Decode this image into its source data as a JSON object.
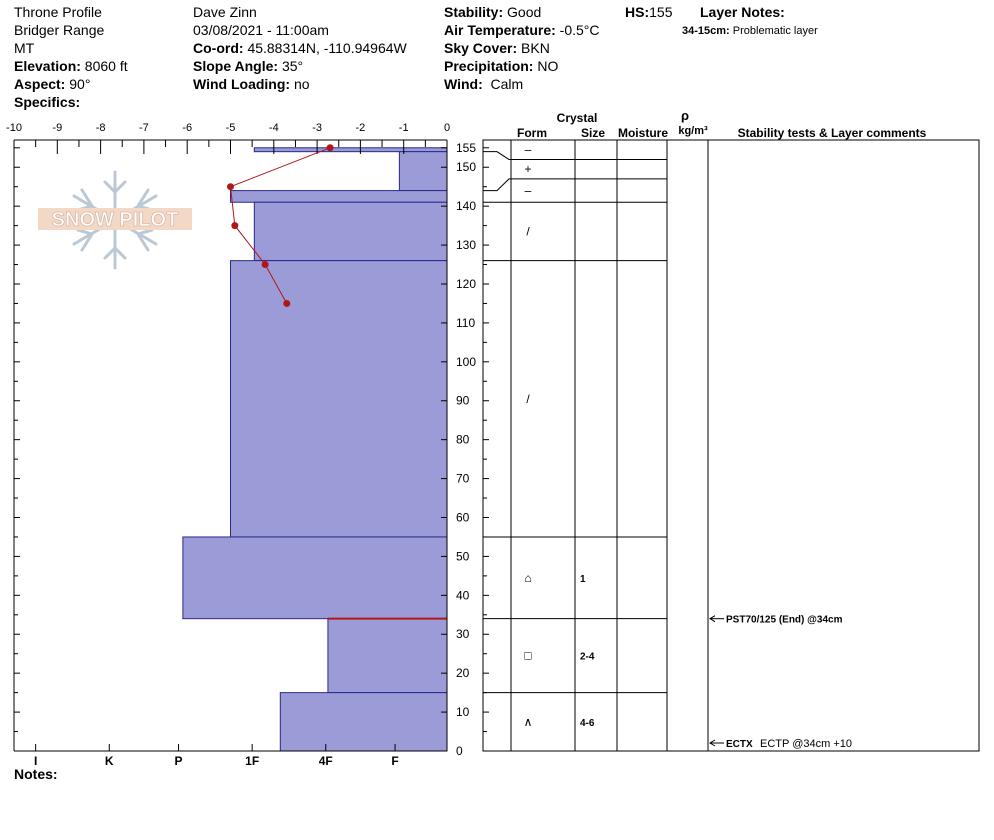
{
  "header": {
    "location": "Throne Profile",
    "range": "Bridger Range",
    "state": "MT",
    "elevation_label": "Elevation:",
    "elevation": "8060 ft",
    "aspect_label": "Aspect:",
    "aspect": "90°",
    "specifics_label": "Specifics:",
    "observer": "Dave Zinn",
    "datetime": "03/08/2021 - 11:00am",
    "coord_label": "Co-ord:",
    "coord": "45.88314N, -110.94964W",
    "slope_label": "Slope Angle:",
    "slope": "35°",
    "wind_loading_label": "Wind Loading:",
    "wind_loading": "no",
    "stability_label": "Stability:",
    "stability": "Good",
    "air_temp_label": "Air Temperature:",
    "air_temp": "-0.5°C",
    "sky_label": "Sky Cover:",
    "sky": "BKN",
    "precip_label": "Precipitation:",
    "precip": "NO",
    "wind_label": "Wind:",
    "wind": "Calm",
    "hs_label": "HS:",
    "hs": "155",
    "layer_notes_label": "Layer Notes:",
    "layer_note_range": "34-15cm:",
    "layer_note_text": "Problematic layer"
  },
  "notes_label": "Notes:",
  "watermark": "SNOW PILOT",
  "columns": {
    "crystal": "Crystal",
    "form": "Form",
    "size": "Size",
    "moisture": "Moisture",
    "rho": "ρ",
    "density_unit": "kg/m³",
    "stability": "Stability tests & Layer comments"
  },
  "colors": {
    "layer_fill": "#9b9bd7",
    "layer_stroke": "#2a2a8a",
    "temp_line": "#b01818",
    "weak_layer": "#b01818"
  },
  "chart_data": {
    "type": "snow-profile",
    "temp_axis": {
      "ticks": [
        "-10",
        "-9",
        "-8",
        "-7",
        "-6",
        "-5",
        "-4",
        "-3",
        "-2",
        "-1",
        "0"
      ],
      "range": [
        -10,
        0
      ]
    },
    "height_axis": {
      "range": [
        0,
        157
      ],
      "ticks": [
        "0",
        "10",
        "20",
        "30",
        "40",
        "50",
        "60",
        "70",
        "80",
        "90",
        "100",
        "110",
        "120",
        "130",
        "140",
        "150",
        "155"
      ],
      "tick_values": [
        0,
        10,
        20,
        30,
        40,
        50,
        60,
        70,
        80,
        90,
        100,
        110,
        120,
        130,
        140,
        150,
        155
      ]
    },
    "hardness_axis": {
      "labels": [
        "I",
        "K",
        "P",
        "1F",
        "4F",
        "F"
      ]
    },
    "hardness_label_positions": [
      -9.5,
      -7.8,
      -6.2,
      -4.5,
      -2.8,
      -1.2
    ],
    "layers": [
      {
        "top": 155,
        "bottom": 154,
        "hardness_temp": -4.45,
        "form": "–",
        "size": ""
      },
      {
        "top": 154,
        "bottom": 144,
        "hardness_temp": -1.1,
        "form": "+",
        "size": ""
      },
      {
        "top": 144,
        "bottom": 141,
        "hardness_temp": -5.0,
        "form": "–",
        "size": ""
      },
      {
        "top": 141,
        "bottom": 126,
        "hardness_temp": -4.45,
        "form": "/",
        "size": ""
      },
      {
        "top": 126,
        "bottom": 55,
        "hardness_temp": -5.0,
        "form": "/",
        "size": ""
      },
      {
        "top": 55,
        "bottom": 34,
        "hardness_temp": -6.1,
        "form": "⌂",
        "size": "1"
      },
      {
        "top": 34,
        "bottom": 15,
        "hardness_temp": -2.75,
        "form": "□",
        "size": "2-4"
      },
      {
        "top": 15,
        "bottom": 0,
        "hardness_temp": -3.85,
        "form": "∧",
        "size": "4-6"
      }
    ],
    "temperature_profile": [
      {
        "height": 155,
        "temp": -2.7
      },
      {
        "height": 145,
        "temp": -5.0
      },
      {
        "height": 135,
        "temp": -4.9
      },
      {
        "height": 125,
        "temp": -4.2
      },
      {
        "height": 115,
        "temp": -3.7
      }
    ],
    "weak_layer_height": 34,
    "tests": [
      {
        "height": 34,
        "label": "PST70/125 (End) @34cm",
        "extra": ""
      },
      {
        "height": 0,
        "label": "ECTX",
        "extra": "ECTP @34cm +10"
      }
    ]
  }
}
